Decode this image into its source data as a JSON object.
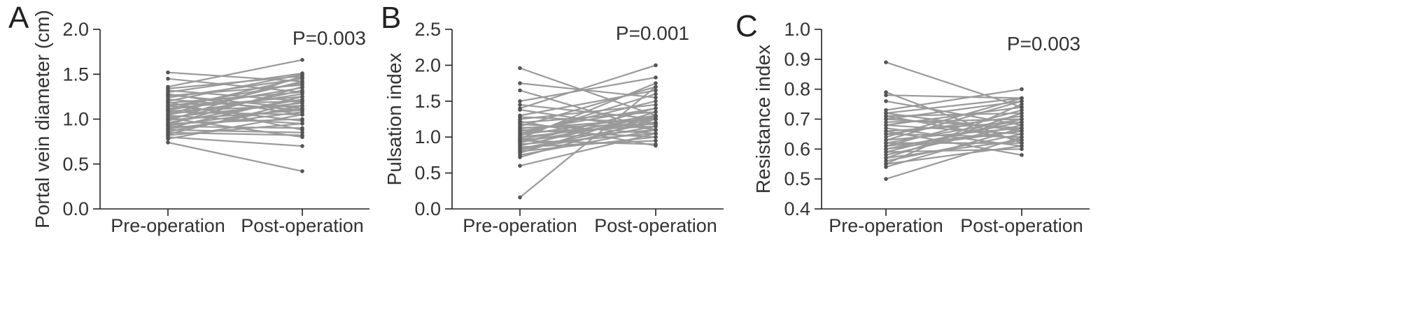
{
  "chart_data": [
    {
      "type": "line",
      "panel": "A",
      "ylabel": "Portal vein diameter (cm)",
      "categories": [
        "Pre-operation",
        "Post-operation"
      ],
      "ylim": [
        0.0,
        2.0
      ],
      "yticks": [
        "0.0",
        "0.5",
        "1.0",
        "1.5",
        "2.0"
      ],
      "annotation": "P=0.003",
      "pairs": [
        [
          1.52,
          1.42
        ],
        [
          1.45,
          1.3
        ],
        [
          1.36,
          1.66
        ],
        [
          1.34,
          1.48
        ],
        [
          1.32,
          1.2
        ],
        [
          1.3,
          1.51
        ],
        [
          1.28,
          1.05
        ],
        [
          1.26,
          1.38
        ],
        [
          1.24,
          1.45
        ],
        [
          1.22,
          1.1
        ],
        [
          1.2,
          1.5
        ],
        [
          1.18,
          1.3
        ],
        [
          1.16,
          1.2
        ],
        [
          1.15,
          0.98
        ],
        [
          1.14,
          1.4
        ],
        [
          1.12,
          1.25
        ],
        [
          1.1,
          1.35
        ],
        [
          1.09,
          1.15
        ],
        [
          1.08,
          1.05
        ],
        [
          1.06,
          1.42
        ],
        [
          1.05,
          1.28
        ],
        [
          1.04,
          0.95
        ],
        [
          1.02,
          1.18
        ],
        [
          1.0,
          1.32
        ],
        [
          0.99,
          1.1
        ],
        [
          0.98,
          1.48
        ],
        [
          0.96,
          1.22
        ],
        [
          0.95,
          1.0
        ],
        [
          0.93,
          1.12
        ],
        [
          0.92,
          0.9
        ],
        [
          0.9,
          1.25
        ],
        [
          0.89,
          1.08
        ],
        [
          0.88,
          0.85
        ],
        [
          0.86,
          1.15
        ],
        [
          0.85,
          0.82
        ],
        [
          0.83,
          1.2
        ],
        [
          0.82,
          0.95
        ],
        [
          0.8,
          0.7
        ],
        [
          0.78,
          1.05
        ],
        [
          0.74,
          0.42
        ],
        [
          1.11,
          1.46
        ],
        [
          1.19,
          0.88
        ],
        [
          1.27,
          1.12
        ],
        [
          1.01,
          0.8
        ],
        [
          0.94,
          1.36
        ]
      ]
    },
    {
      "type": "line",
      "panel": "B",
      "ylabel": "Pulsation index",
      "categories": [
        "Pre-operation",
        "Post-operation"
      ],
      "ylim": [
        0.0,
        2.5
      ],
      "yticks": [
        "0.0",
        "0.5",
        "1.0",
        "1.5",
        "2.0",
        "2.5"
      ],
      "annotation": "P=0.001",
      "pairs": [
        [
          1.96,
          1.3
        ],
        [
          1.75,
          1.55
        ],
        [
          1.65,
          1.1
        ],
        [
          1.5,
          1.83
        ],
        [
          1.45,
          1.25
        ],
        [
          1.4,
          2.0
        ],
        [
          1.38,
          1.1
        ],
        [
          1.3,
          1.65
        ],
        [
          1.28,
          1.2
        ],
        [
          1.25,
          1.45
        ],
        [
          1.2,
          1.35
        ],
        [
          1.18,
          1.05
        ],
        [
          1.15,
          1.7
        ],
        [
          1.12,
          1.25
        ],
        [
          1.1,
          1.0
        ],
        [
          1.08,
          1.4
        ],
        [
          1.06,
          1.15
        ],
        [
          1.05,
          1.5
        ],
        [
          1.03,
          1.3
        ],
        [
          1.0,
          1.2
        ],
        [
          0.98,
          1.75
        ],
        [
          0.96,
          1.1
        ],
        [
          0.95,
          0.9
        ],
        [
          0.93,
          1.25
        ],
        [
          0.92,
          1.4
        ],
        [
          0.9,
          1.05
        ],
        [
          0.88,
          1.3
        ],
        [
          0.86,
          0.95
        ],
        [
          0.84,
          1.2
        ],
        [
          0.82,
          1.15
        ],
        [
          0.8,
          1.0
        ],
        [
          0.78,
          1.35
        ],
        [
          0.75,
          1.1
        ],
        [
          0.72,
          1.25
        ],
        [
          0.6,
          1.05
        ],
        [
          0.16,
          1.7
        ],
        [
          1.22,
          0.88
        ],
        [
          1.02,
          1.6
        ],
        [
          0.97,
          1.28
        ],
        [
          1.13,
          1.18
        ]
      ]
    },
    {
      "type": "line",
      "panel": "C",
      "ylabel": "Resistance index",
      "categories": [
        "Pre-operation",
        "Post-operation"
      ],
      "ylim": [
        0.4,
        1.0
      ],
      "yticks": [
        "0.4",
        "0.5",
        "0.6",
        "0.7",
        "0.8",
        "0.9",
        "1.0"
      ],
      "annotation": "P=0.003",
      "pairs": [
        [
          0.89,
          0.74
        ],
        [
          0.79,
          0.62
        ],
        [
          0.78,
          0.77
        ],
        [
          0.76,
          0.68
        ],
        [
          0.73,
          0.8
        ],
        [
          0.72,
          0.66
        ],
        [
          0.71,
          0.72
        ],
        [
          0.71,
          0.63
        ],
        [
          0.7,
          0.76
        ],
        [
          0.69,
          0.7
        ],
        [
          0.68,
          0.65
        ],
        [
          0.68,
          0.74
        ],
        [
          0.67,
          0.61
        ],
        [
          0.66,
          0.69
        ],
        [
          0.65,
          0.71
        ],
        [
          0.65,
          0.64
        ],
        [
          0.64,
          0.77
        ],
        [
          0.63,
          0.67
        ],
        [
          0.62,
          0.7
        ],
        [
          0.62,
          0.62
        ],
        [
          0.61,
          0.73
        ],
        [
          0.6,
          0.66
        ],
        [
          0.6,
          0.69
        ],
        [
          0.59,
          0.6
        ],
        [
          0.58,
          0.68
        ],
        [
          0.57,
          0.72
        ],
        [
          0.57,
          0.63
        ],
        [
          0.56,
          0.65
        ],
        [
          0.55,
          0.75
        ],
        [
          0.55,
          0.61
        ],
        [
          0.54,
          0.67
        ],
        [
          0.5,
          0.64
        ],
        [
          0.66,
          0.58
        ],
        [
          0.7,
          0.67
        ],
        [
          0.63,
          0.76
        ],
        [
          0.59,
          0.7
        ],
        [
          0.72,
          0.77
        ],
        [
          0.61,
          0.66
        ]
      ]
    }
  ]
}
